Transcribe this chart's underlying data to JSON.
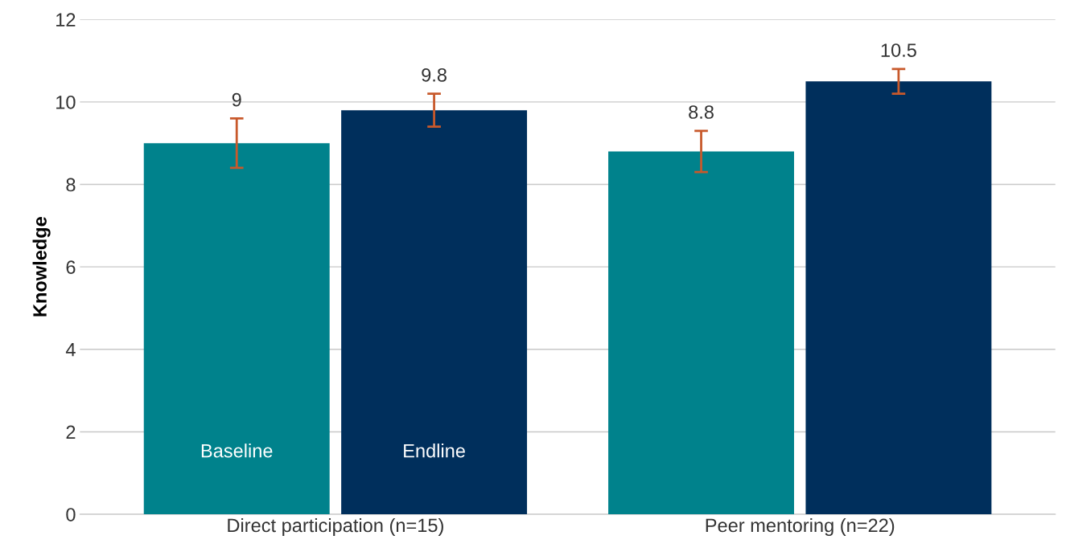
{
  "chart_data": {
    "type": "bar",
    "ylabel": "Knowledge",
    "categories": [
      "Direct participation (n=15)",
      "Peer mentoring (n=22)"
    ],
    "series": [
      {
        "name": "Baseline",
        "color": "#00828c",
        "values": [
          9,
          8.8
        ],
        "errors": [
          0.6,
          0.5
        ]
      },
      {
        "name": "Endline",
        "color": "#002f5c",
        "values": [
          9.8,
          10.5
        ],
        "errors": [
          0.4,
          0.3
        ]
      }
    ],
    "ylim": [
      0,
      12
    ],
    "yticks": [
      0,
      2,
      4,
      6,
      8,
      10,
      12
    ],
    "grid": "y",
    "data_labels": true,
    "legend": false
  }
}
